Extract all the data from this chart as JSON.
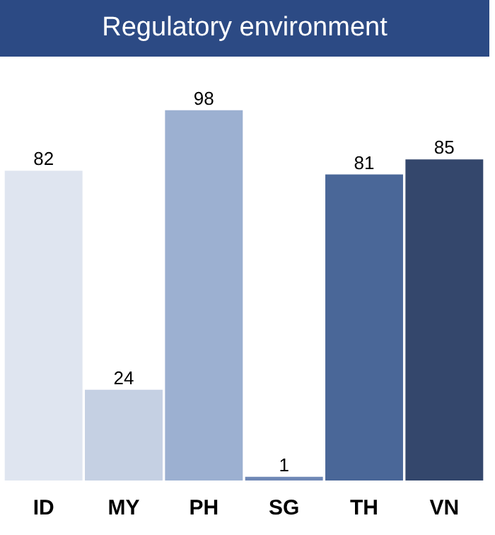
{
  "chart_data": {
    "type": "bar",
    "title": "Regulatory environment",
    "categories": [
      "ID",
      "MY",
      "PH",
      "SG",
      "TH",
      "VN"
    ],
    "values": [
      82,
      24,
      98,
      1,
      81,
      85
    ],
    "colors": [
      "#dfe5f0",
      "#c5d0e3",
      "#9cb0d1",
      "#6f88b6",
      "#4a6798",
      "#34476c"
    ],
    "data_labels": true,
    "tick_labels": "x"
  }
}
